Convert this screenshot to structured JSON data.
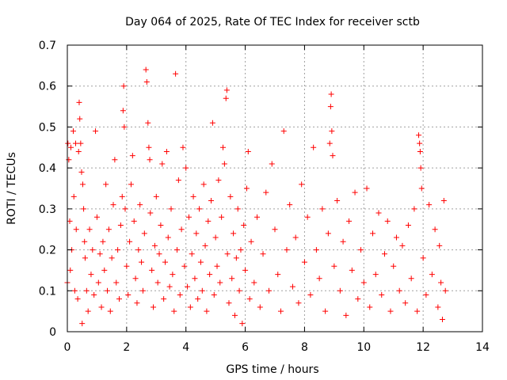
{
  "chart_data": {
    "type": "scatter",
    "title": "Day 064 of 2025, Rate Of TEC Index for receiver sctb",
    "xlabel": "GPS time / hours",
    "ylabel": "ROTI / TECUs",
    "xlim": [
      0,
      14
    ],
    "ylim": [
      0,
      0.7
    ],
    "xticks": [
      0,
      2,
      4,
      6,
      8,
      10,
      12,
      14
    ],
    "yticks": [
      0,
      0.1,
      0.2,
      0.3,
      0.4,
      0.5,
      0.6,
      0.7
    ],
    "grid": true,
    "marker": "+",
    "series": [
      {
        "color": "#ff0000",
        "points": [
          [
            0.0,
            0.12
          ],
          [
            0.02,
            0.46
          ],
          [
            0.05,
            0.42
          ],
          [
            0.08,
            0.27
          ],
          [
            0.1,
            0.15
          ],
          [
            0.12,
            0.45
          ],
          [
            0.15,
            0.2
          ],
          [
            0.2,
            0.49
          ],
          [
            0.22,
            0.33
          ],
          [
            0.25,
            0.1
          ],
          [
            0.28,
            0.46
          ],
          [
            0.3,
            0.25
          ],
          [
            0.35,
            0.08
          ],
          [
            0.38,
            0.44
          ],
          [
            0.4,
            0.56
          ],
          [
            0.42,
            0.52
          ],
          [
            0.45,
            0.46
          ],
          [
            0.48,
            0.39
          ],
          [
            0.5,
            0.02
          ],
          [
            0.52,
            0.36
          ],
          [
            0.55,
            0.3
          ],
          [
            0.58,
            0.22
          ],
          [
            0.6,
            0.18
          ],
          [
            0.65,
            0.1
          ],
          [
            0.7,
            0.05
          ],
          [
            0.75,
            0.25
          ],
          [
            0.8,
            0.14
          ],
          [
            0.85,
            0.2
          ],
          [
            0.9,
            0.09
          ],
          [
            0.95,
            0.49
          ],
          [
            1.0,
            0.28
          ],
          [
            1.05,
            0.12
          ],
          [
            1.1,
            0.19
          ],
          [
            1.15,
            0.06
          ],
          [
            1.2,
            0.22
          ],
          [
            1.25,
            0.15
          ],
          [
            1.3,
            0.36
          ],
          [
            1.35,
            0.1
          ],
          [
            1.4,
            0.25
          ],
          [
            1.45,
            0.05
          ],
          [
            1.5,
            0.18
          ],
          [
            1.55,
            0.31
          ],
          [
            1.6,
            0.42
          ],
          [
            1.65,
            0.12
          ],
          [
            1.7,
            0.2
          ],
          [
            1.75,
            0.08
          ],
          [
            1.8,
            0.26
          ],
          [
            1.85,
            0.33
          ],
          [
            1.88,
            0.54
          ],
          [
            1.9,
            0.6
          ],
          [
            1.92,
            0.5
          ],
          [
            1.95,
            0.3
          ],
          [
            2.0,
            0.16
          ],
          [
            2.05,
            0.09
          ],
          [
            2.1,
            0.22
          ],
          [
            2.15,
            0.36
          ],
          [
            2.2,
            0.43
          ],
          [
            2.25,
            0.27
          ],
          [
            2.3,
            0.13
          ],
          [
            2.35,
            0.07
          ],
          [
            2.4,
            0.2
          ],
          [
            2.45,
            0.31
          ],
          [
            2.5,
            0.17
          ],
          [
            2.55,
            0.1
          ],
          [
            2.6,
            0.24
          ],
          [
            2.65,
            0.64
          ],
          [
            2.68,
            0.61
          ],
          [
            2.72,
            0.51
          ],
          [
            2.75,
            0.45
          ],
          [
            2.78,
            0.42
          ],
          [
            2.8,
            0.29
          ],
          [
            2.85,
            0.15
          ],
          [
            2.9,
            0.06
          ],
          [
            2.95,
            0.21
          ],
          [
            3.0,
            0.33
          ],
          [
            3.05,
            0.12
          ],
          [
            3.1,
            0.19
          ],
          [
            3.15,
            0.26
          ],
          [
            3.2,
            0.41
          ],
          [
            3.25,
            0.08
          ],
          [
            3.3,
            0.17
          ],
          [
            3.35,
            0.44
          ],
          [
            3.4,
            0.23
          ],
          [
            3.45,
            0.11
          ],
          [
            3.5,
            0.3
          ],
          [
            3.55,
            0.14
          ],
          [
            3.6,
            0.05
          ],
          [
            3.65,
            0.63
          ],
          [
            3.7,
            0.2
          ],
          [
            3.75,
            0.37
          ],
          [
            3.8,
            0.09
          ],
          [
            3.85,
            0.25
          ],
          [
            3.9,
            0.45
          ],
          [
            3.95,
            0.16
          ],
          [
            4.0,
            0.4
          ],
          [
            4.05,
            0.11
          ],
          [
            4.1,
            0.28
          ],
          [
            4.15,
            0.06
          ],
          [
            4.2,
            0.19
          ],
          [
            4.25,
            0.33
          ],
          [
            4.3,
            0.13
          ],
          [
            4.35,
            0.24
          ],
          [
            4.4,
            0.08
          ],
          [
            4.45,
            0.3
          ],
          [
            4.5,
            0.17
          ],
          [
            4.55,
            0.1
          ],
          [
            4.6,
            0.36
          ],
          [
            4.65,
            0.21
          ],
          [
            4.7,
            0.05
          ],
          [
            4.75,
            0.27
          ],
          [
            4.8,
            0.14
          ],
          [
            4.85,
            0.32
          ],
          [
            4.9,
            0.51
          ],
          [
            4.95,
            0.09
          ],
          [
            5.0,
            0.23
          ],
          [
            5.05,
            0.16
          ],
          [
            5.1,
            0.37
          ],
          [
            5.15,
            0.12
          ],
          [
            5.2,
            0.28
          ],
          [
            5.25,
            0.45
          ],
          [
            5.3,
            0.41
          ],
          [
            5.35,
            0.57
          ],
          [
            5.38,
            0.59
          ],
          [
            5.4,
            0.19
          ],
          [
            5.45,
            0.07
          ],
          [
            5.5,
            0.33
          ],
          [
            5.55,
            0.13
          ],
          [
            5.6,
            0.24
          ],
          [
            5.65,
            0.04
          ],
          [
            5.7,
            0.18
          ],
          [
            5.75,
            0.3
          ],
          [
            5.8,
            0.1
          ],
          [
            5.85,
            0.2
          ],
          [
            5.9,
            0.02
          ],
          [
            5.95,
            0.26
          ],
          [
            6.0,
            0.15
          ],
          [
            6.05,
            0.35
          ],
          [
            6.1,
            0.44
          ],
          [
            6.15,
            0.08
          ],
          [
            6.2,
            0.22
          ],
          [
            6.3,
            0.12
          ],
          [
            6.4,
            0.28
          ],
          [
            6.5,
            0.06
          ],
          [
            6.6,
            0.19
          ],
          [
            6.7,
            0.34
          ],
          [
            6.8,
            0.1
          ],
          [
            6.9,
            0.41
          ],
          [
            7.0,
            0.25
          ],
          [
            7.1,
            0.14
          ],
          [
            7.2,
            0.05
          ],
          [
            7.3,
            0.49
          ],
          [
            7.4,
            0.2
          ],
          [
            7.5,
            0.31
          ],
          [
            7.6,
            0.11
          ],
          [
            7.7,
            0.23
          ],
          [
            7.8,
            0.07
          ],
          [
            7.9,
            0.36
          ],
          [
            8.0,
            0.17
          ],
          [
            8.1,
            0.28
          ],
          [
            8.2,
            0.09
          ],
          [
            8.3,
            0.45
          ],
          [
            8.4,
            0.2
          ],
          [
            8.5,
            0.13
          ],
          [
            8.6,
            0.3
          ],
          [
            8.7,
            0.05
          ],
          [
            8.8,
            0.24
          ],
          [
            8.85,
            0.46
          ],
          [
            8.88,
            0.55
          ],
          [
            8.9,
            0.58
          ],
          [
            8.92,
            0.49
          ],
          [
            8.95,
            0.43
          ],
          [
            9.0,
            0.16
          ],
          [
            9.1,
            0.32
          ],
          [
            9.2,
            0.1
          ],
          [
            9.3,
            0.22
          ],
          [
            9.4,
            0.04
          ],
          [
            9.5,
            0.27
          ],
          [
            9.6,
            0.15
          ],
          [
            9.7,
            0.34
          ],
          [
            9.8,
            0.08
          ],
          [
            9.9,
            0.2
          ],
          [
            10.0,
            0.12
          ],
          [
            10.1,
            0.35
          ],
          [
            10.2,
            0.06
          ],
          [
            10.3,
            0.24
          ],
          [
            10.4,
            0.14
          ],
          [
            10.5,
            0.29
          ],
          [
            10.6,
            0.09
          ],
          [
            10.7,
            0.19
          ],
          [
            10.8,
            0.27
          ],
          [
            10.9,
            0.05
          ],
          [
            11.0,
            0.16
          ],
          [
            11.1,
            0.23
          ],
          [
            11.2,
            0.1
          ],
          [
            11.3,
            0.21
          ],
          [
            11.4,
            0.07
          ],
          [
            11.5,
            0.26
          ],
          [
            11.6,
            0.13
          ],
          [
            11.7,
            0.3
          ],
          [
            11.8,
            0.05
          ],
          [
            11.85,
            0.48
          ],
          [
            11.88,
            0.46
          ],
          [
            11.9,
            0.44
          ],
          [
            11.92,
            0.4
          ],
          [
            11.95,
            0.35
          ],
          [
            12.0,
            0.18
          ],
          [
            12.1,
            0.09
          ],
          [
            12.2,
            0.31
          ],
          [
            12.3,
            0.14
          ],
          [
            12.4,
            0.25
          ],
          [
            12.5,
            0.06
          ],
          [
            12.55,
            0.21
          ],
          [
            12.6,
            0.12
          ],
          [
            12.65,
            0.03
          ],
          [
            12.7,
            0.32
          ],
          [
            12.75,
            0.1
          ]
        ]
      }
    ]
  }
}
